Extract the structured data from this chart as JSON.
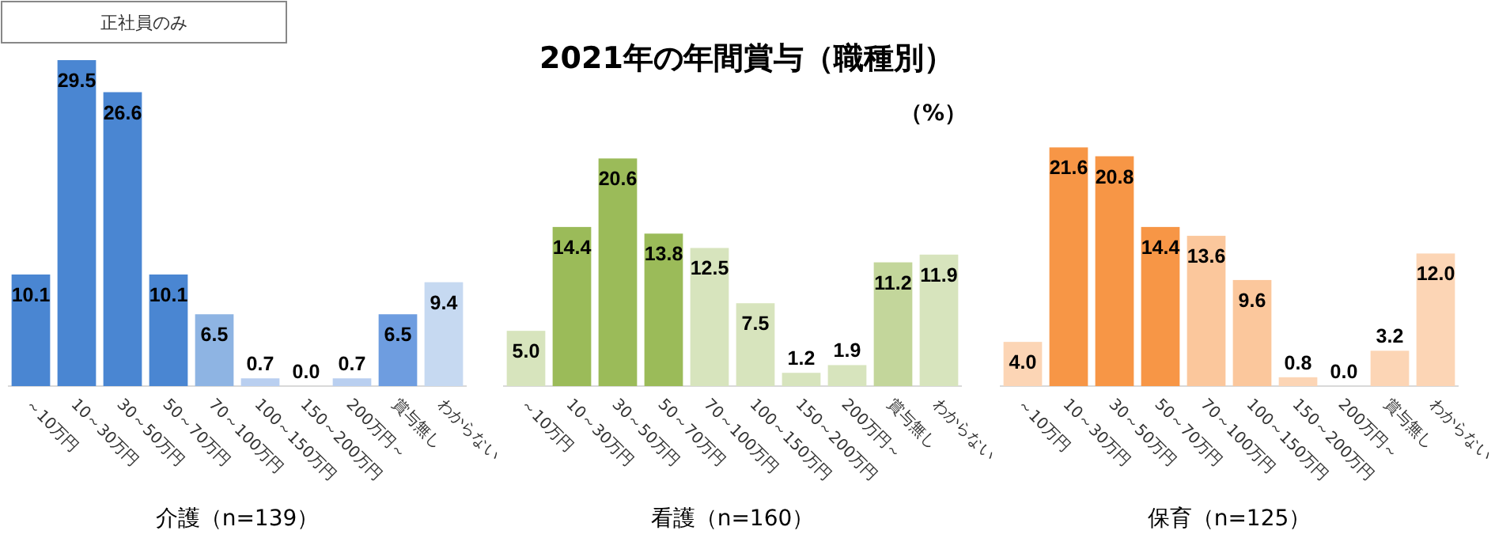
{
  "chart_data": [
    {
      "type": "bar",
      "annotations": [
        "正社員のみ"
      ],
      "xlabel": "介護（n=139）",
      "categories": [
        "～10万円",
        "10～30万円",
        "30～50万円",
        "50～70万円",
        "70～100万円",
        "100～150万円",
        "150～200万円",
        "200万円～",
        "賞与無し",
        "わからない"
      ],
      "values": [
        10.1,
        29.5,
        26.6,
        10.1,
        6.5,
        0.7,
        0.0,
        0.7,
        6.5,
        9.4
      ],
      "value_labels": [
        "10.1",
        "29.5",
        "26.6",
        "10.1",
        "6.5",
        "0.7",
        "0.0",
        "0.7",
        "6.5",
        "9.4"
      ],
      "colors": [
        "#4a86d2",
        "#4a86d2",
        "#4a86d2",
        "#4a86d2",
        "#8eb4e3",
        "#b9cff0",
        "#b9cff0",
        "#b9cff0",
        "#6e9de0",
        "#c6d9f1"
      ]
    },
    {
      "type": "bar",
      "title": "2021年の年間賞与（職種別）",
      "annotations": [
        "（%）"
      ],
      "xlabel": "看護（n=160）",
      "categories": [
        "～10万円",
        "10～30万円",
        "30～50万円",
        "50～70万円",
        "70～100万円",
        "100～150万円",
        "150～200万円",
        "200万円～",
        "賞与無し",
        "わからない"
      ],
      "values": [
        5.0,
        14.4,
        20.6,
        13.8,
        12.5,
        7.5,
        1.2,
        1.9,
        11.2,
        11.9
      ],
      "value_labels": [
        "5.0",
        "14.4",
        "20.6",
        "13.8",
        "12.5",
        "7.5",
        "1.2",
        "1.9",
        "11.2",
        "11.9"
      ],
      "colors": [
        "#d7e4bd",
        "#9bbb59",
        "#9bbb59",
        "#9bbb59",
        "#d7e4bd",
        "#d7e4bd",
        "#d7e4bd",
        "#d7e4bd",
        "#c3d69b",
        "#d7e4bd"
      ]
    },
    {
      "type": "bar",
      "xlabel": "保育（n=125）",
      "categories": [
        "～10万円",
        "10～30万円",
        "30～50万円",
        "50～70万円",
        "70～100万円",
        "100～150万円",
        "150～200万円",
        "200万円～",
        "賞与無し",
        "わからない"
      ],
      "values": [
        4.0,
        21.6,
        20.8,
        14.4,
        13.6,
        9.6,
        0.8,
        0.0,
        3.2,
        12.0
      ],
      "value_labels": [
        "4.0",
        "21.6",
        "20.8",
        "14.4",
        "13.6",
        "9.6",
        "0.8",
        "0.0",
        "3.2",
        "12.0"
      ],
      "colors": [
        "#fcd5b5",
        "#f79646",
        "#f79646",
        "#f79646",
        "#fbc79c",
        "#fbc79c",
        "#fcd5b5",
        "#fcd5b5",
        "#fcd5b5",
        "#fcd5b5"
      ]
    }
  ]
}
